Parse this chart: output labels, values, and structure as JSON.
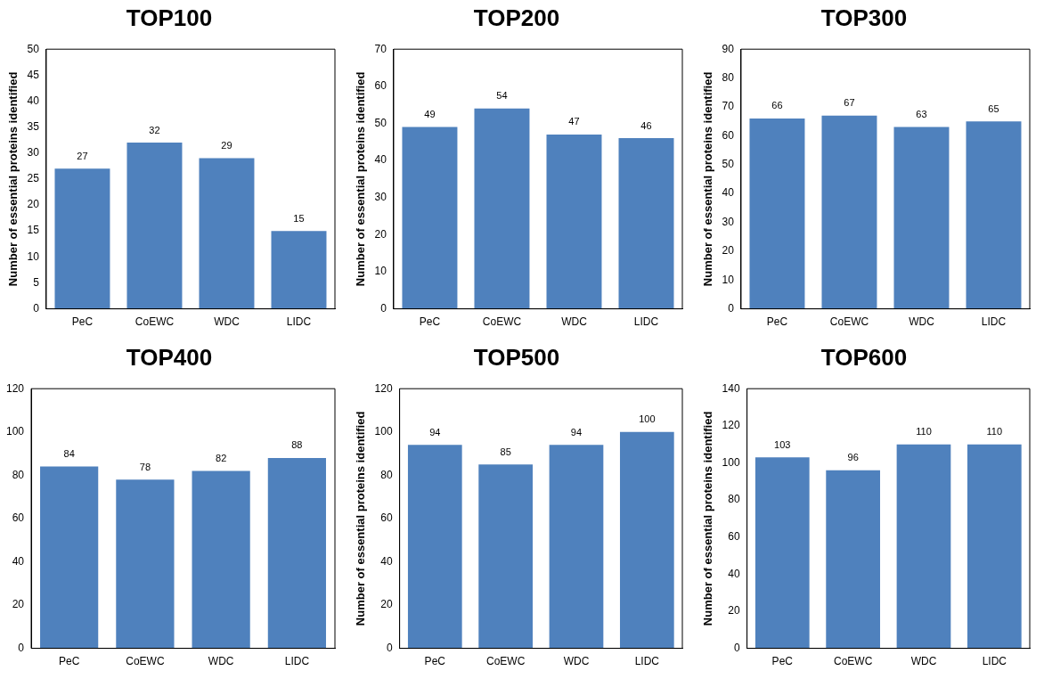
{
  "chart_data": [
    {
      "type": "bar",
      "title": "TOP100",
      "ylabel": "Number of essential proteins identified",
      "categories": [
        "PeC",
        "CoEWC",
        "WDC",
        "LIDC"
      ],
      "values": [
        27,
        32,
        29,
        15
      ],
      "color": "#4f81bd",
      "ylim": [
        0,
        50
      ],
      "yticks": [
        0,
        5,
        10,
        15,
        20,
        25,
        30,
        35,
        40,
        45,
        50
      ],
      "grid": false,
      "data_labels": true
    },
    {
      "type": "bar",
      "title": "TOP200",
      "ylabel": "Number of essential proteins identified",
      "categories": [
        "PeC",
        "CoEWC",
        "WDC",
        "LIDC"
      ],
      "values": [
        49,
        54,
        47,
        46
      ],
      "color": "#4f81bd",
      "ylim": [
        0,
        70
      ],
      "yticks": [
        0,
        10,
        20,
        30,
        40,
        50,
        60,
        70
      ],
      "grid": false,
      "data_labels": true
    },
    {
      "type": "bar",
      "title": "TOP300",
      "ylabel": "Number of essential proteins identified",
      "categories": [
        "PeC",
        "CoEWC",
        "WDC",
        "LIDC"
      ],
      "values": [
        66,
        67,
        63,
        65
      ],
      "color": "#4f81bd",
      "ylim": [
        0,
        90
      ],
      "yticks": [
        0,
        10,
        20,
        30,
        40,
        50,
        60,
        70,
        80,
        90
      ],
      "grid": false,
      "data_labels": true
    },
    {
      "type": "bar",
      "title": "TOP400",
      "categories": [
        "PeC",
        "CoEWC",
        "WDC",
        "LIDC"
      ],
      "values": [
        84,
        78,
        82,
        88
      ],
      "color": "#4f81bd",
      "ylim": [
        0,
        120
      ],
      "yticks": [
        0,
        20,
        40,
        60,
        80,
        100,
        120
      ],
      "grid": false,
      "data_labels": true
    },
    {
      "type": "bar",
      "title": "TOP500",
      "ylabel": "Number of essential proteins identified",
      "categories": [
        "PeC",
        "CoEWC",
        "WDC",
        "LIDC"
      ],
      "values": [
        94,
        85,
        94,
        100
      ],
      "color": "#4f81bd",
      "ylim": [
        0,
        120
      ],
      "yticks": [
        0,
        20,
        40,
        60,
        80,
        100,
        120
      ],
      "grid": false,
      "data_labels": true
    },
    {
      "type": "bar",
      "title": "TOP600",
      "ylabel": "Number of essential proteins identified",
      "categories": [
        "PeC",
        "CoEWC",
        "WDC",
        "LIDC"
      ],
      "values": [
        103,
        96,
        110,
        110
      ],
      "color": "#4f81bd",
      "ylim": [
        0,
        140
      ],
      "yticks": [
        0,
        20,
        40,
        60,
        80,
        100,
        120,
        140
      ],
      "grid": false,
      "data_labels": true
    }
  ]
}
